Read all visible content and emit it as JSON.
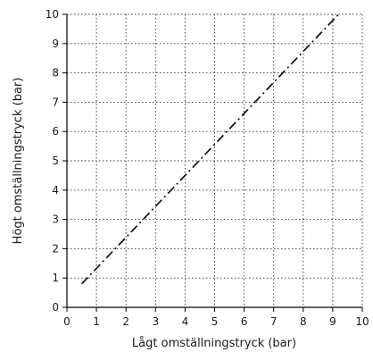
{
  "chart_data": {
    "type": "line",
    "xlabel": "Lågt omställningstryck (bar)",
    "ylabel": "Högt omställningstryck (bar)",
    "xlim": [
      0,
      10
    ],
    "ylim": [
      0,
      10
    ],
    "x_ticks": [
      "0",
      "1",
      "2",
      "3",
      "4",
      "5",
      "6",
      "7",
      "8",
      "9",
      "10"
    ],
    "y_ticks": [
      "0",
      "1",
      "2",
      "3",
      "4",
      "5",
      "6",
      "7",
      "8",
      "9",
      "10"
    ],
    "grid": true,
    "line_style": "dash-dot",
    "series": [
      {
        "x": [
          0.5,
          9.2
        ],
        "y": [
          0.8,
          10
        ]
      }
    ],
    "colors": {
      "line": "#111111",
      "grid": "#333333",
      "axis": "#000000"
    }
  }
}
